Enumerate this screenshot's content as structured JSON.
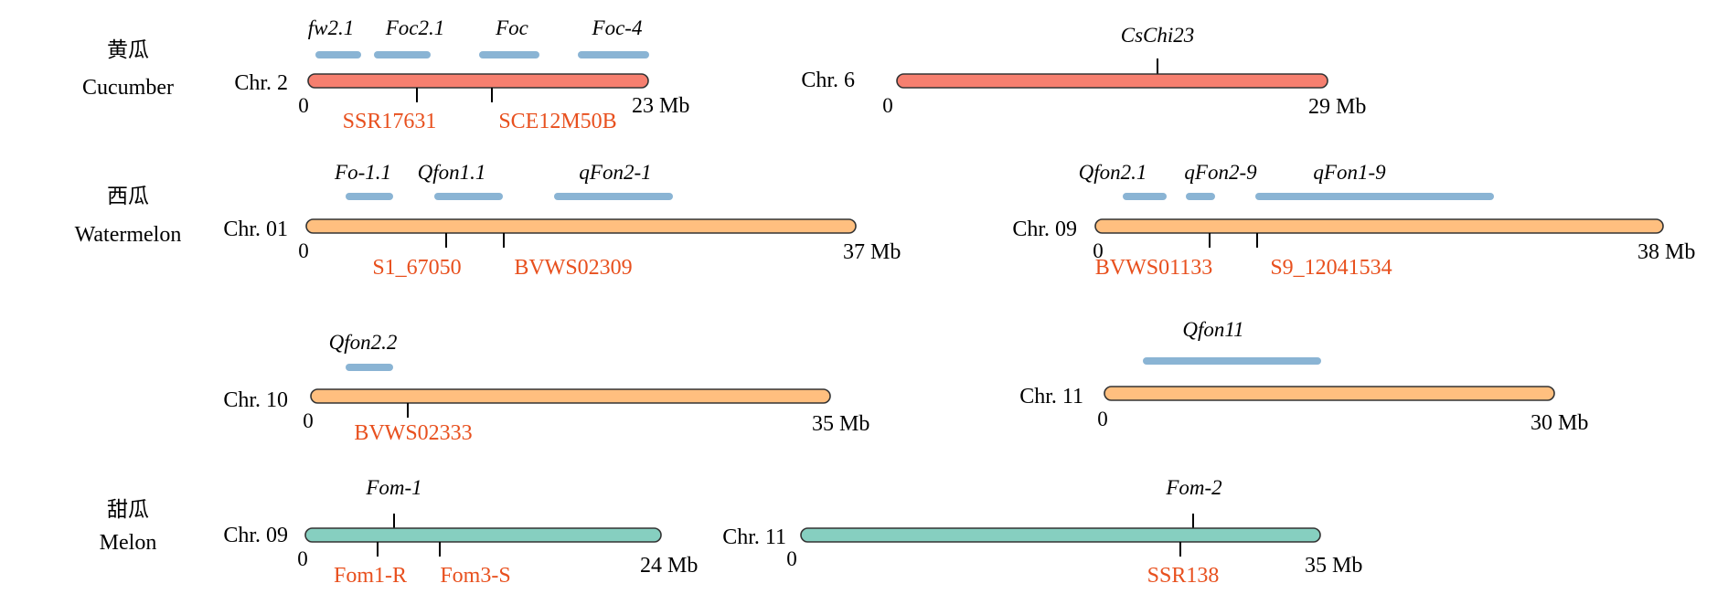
{
  "colors": {
    "cucumber": "#F67F6F",
    "watermelon": "#FFBF7F",
    "melon": "#86CFC0",
    "qtl": "#8AB4D4",
    "marker_text": "#E8501E",
    "outline": "#333333"
  },
  "groups": [
    {
      "zh": "黄瓜",
      "en": "Cucumber"
    },
    {
      "zh": "西瓜",
      "en": "Watermelon"
    },
    {
      "zh": "甜瓜",
      "en": "Melon"
    }
  ],
  "chromosomes": [
    {
      "name": "Chr. 2",
      "species": "cucumber",
      "start_label": "0",
      "end_label": "23 Mb",
      "qtls": [
        "fw2.1",
        "Foc2.1",
        "Foc",
        "Foc-4"
      ],
      "genes": [],
      "markers": [
        "SSR17631",
        "SCE12M50B"
      ]
    },
    {
      "name": "Chr. 6",
      "species": "cucumber",
      "start_label": "0",
      "end_label": "29 Mb",
      "qtls": [],
      "genes": [
        "CsChi23"
      ],
      "markers": []
    },
    {
      "name": "Chr. 01",
      "species": "watermelon",
      "start_label": "0",
      "end_label": "37 Mb",
      "qtls": [
        "Fo-1.1",
        "Qfon1.1",
        "qFon2-1"
      ],
      "genes": [],
      "markers": [
        "S1_67050",
        "BVWS02309"
      ]
    },
    {
      "name": "Chr. 09",
      "species": "watermelon",
      "start_label": "0",
      "end_label": "38 Mb",
      "qtls": [
        "Qfon2.1",
        "qFon2-9",
        "qFon1-9"
      ],
      "genes": [],
      "markers": [
        "BVWS01133",
        "S9_12041534"
      ]
    },
    {
      "name": "Chr. 10",
      "species": "watermelon",
      "start_label": "0",
      "end_label": "35 Mb",
      "qtls": [
        "Qfon2.2"
      ],
      "genes": [],
      "markers": [
        "BVWS02333"
      ]
    },
    {
      "name": "Chr. 11",
      "species": "watermelon",
      "start_label": "0",
      "end_label": "30 Mb",
      "qtls": [
        "Qfon11"
      ],
      "genes": [],
      "markers": []
    },
    {
      "name": "Chr. 09",
      "species": "melon",
      "start_label": "0",
      "end_label": "24 Mb",
      "qtls": [],
      "genes": [
        "Fom-1"
      ],
      "markers": [
        "Fom1-R",
        "Fom3-S"
      ]
    },
    {
      "name": "Chr. 11",
      "species": "melon",
      "start_label": "0",
      "end_label": "35 Mb",
      "qtls": [],
      "genes": [
        "Fom-2"
      ],
      "markers": [
        "SSR138"
      ]
    }
  ]
}
